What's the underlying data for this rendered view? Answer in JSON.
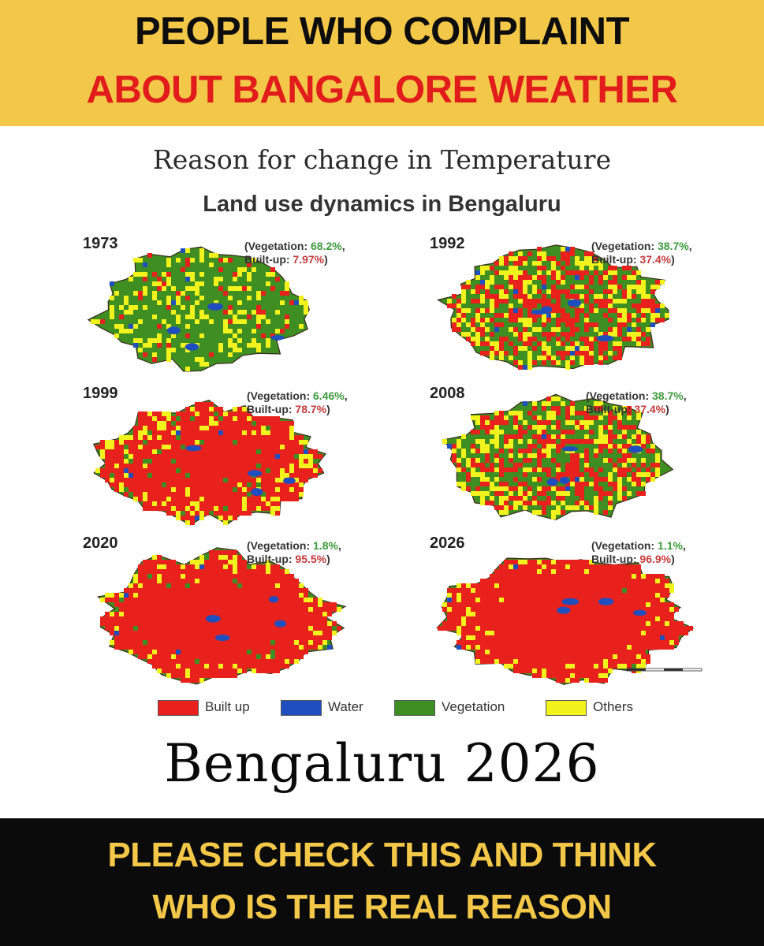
{
  "top_banner": {
    "line1": "PEOPLE WHO COMPLAINT",
    "line2": "ABOUT BANGALORE WEATHER"
  },
  "heading": "Reason for change in  Temperature",
  "subheading": "Land use dynamics in Bengaluru",
  "maps": [
    {
      "year": "1973",
      "veg_label": "(Vegetation: ",
      "vegetation": "68.2%",
      "veg_end": ",",
      "bu_label": "Built-up: ",
      "builtup": "7.97%",
      "bu_end": ")",
      "veg_frac": 0.682,
      "builtup_frac": 0.0797
    },
    {
      "year": "1992",
      "veg_label": "(Vegetation: ",
      "vegetation": "38.7%",
      "veg_end": ",",
      "bu_label": "Built-up: ",
      "builtup": "37.4%",
      "bu_end": ")",
      "veg_frac": 0.387,
      "builtup_frac": 0.374
    },
    {
      "year": "1999",
      "veg_label": "(Vegetation: ",
      "vegetation": "6.46%",
      "veg_end": ",",
      "bu_label": "Built-up: ",
      "builtup": "78.7%",
      "bu_end": ")",
      "veg_frac": 0.0646,
      "builtup_frac": 0.787
    },
    {
      "year": "2008",
      "veg_label": "(Vegetation: ",
      "vegetation": "38.7%",
      "veg_end": ",",
      "bu_label": "Built-up: ",
      "builtup": "37.4%",
      "bu_end": ")",
      "veg_frac": 0.387,
      "builtup_frac": 0.374
    },
    {
      "year": "2020",
      "veg_label": "(Vegetation: ",
      "vegetation": "1.8%",
      "veg_end": ",",
      "bu_label": "Built-up: ",
      "builtup": "95.5%",
      "bu_end": ")",
      "veg_frac": 0.018,
      "builtup_frac": 0.955
    },
    {
      "year": "2026",
      "veg_label": "(Vegetation: ",
      "vegetation": "1.1%",
      "veg_end": ",",
      "bu_label": "Built-up: ",
      "builtup": "96.9%",
      "bu_end": ")",
      "veg_frac": 0.011,
      "builtup_frac": 0.969
    }
  ],
  "legend": [
    {
      "label": "Built up",
      "color": "#e8211d"
    },
    {
      "label": "Water",
      "color": "#1f4fbf"
    },
    {
      "label": "Vegetation",
      "color": "#3e8e22"
    },
    {
      "label": "Others",
      "color": "#f2f21c"
    }
  ],
  "colors": {
    "builtup": "#e8211d",
    "water": "#1f4fbf",
    "vegetation": "#3e8e22",
    "others": "#f2f21c",
    "banner_yellow": "#f3c748"
  },
  "bottom_title": "Bengaluru 2026",
  "bottom_banner": {
    "line1": "PLEASE CHECK THIS AND THINK",
    "line2": "WHO IS THE REAL REASON"
  }
}
